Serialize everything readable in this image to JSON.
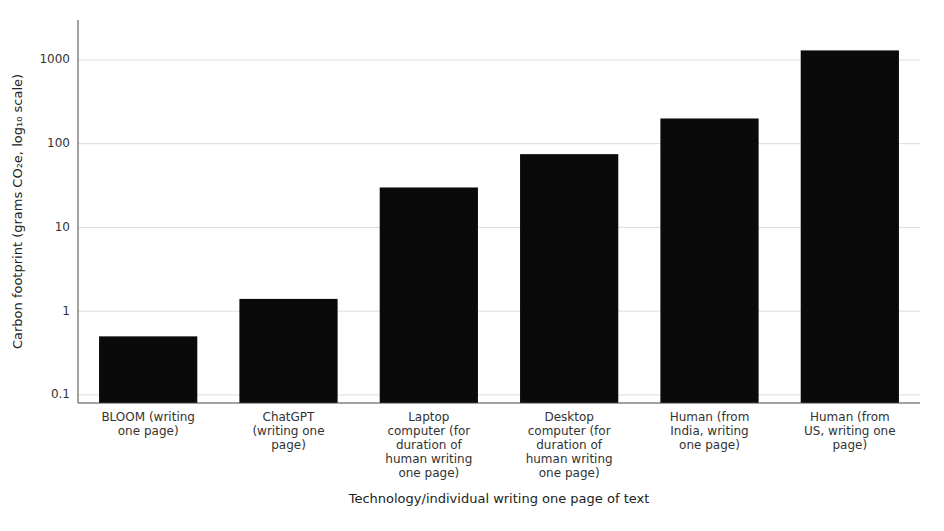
{
  "chart_data": {
    "type": "bar",
    "xlabel": "Technology/individual writing one page of text",
    "ylabel": "Carbon footprint (grams CO₂e, log₁₀ scale)",
    "categories": [
      "BLOOM (writing\none page)",
      "ChatGPT\n(writing one\npage)",
      "Laptop\ncomputer (for\nduration of\nhuman writing\none page)",
      "Desktop\ncomputer (for\nduration of\nhuman writing\none page)",
      "Human (from\nIndia, writing\none page)",
      "Human (from\nUS, writing one\npage)"
    ],
    "values": [
      0.5,
      1.4,
      30,
      75,
      200,
      1300
    ],
    "color": "#0a0a0a",
    "log": "y",
    "ylim": [
      0.08,
      3000
    ],
    "yticks": [
      0.1,
      1,
      10,
      100,
      1000
    ],
    "grid": true
  }
}
